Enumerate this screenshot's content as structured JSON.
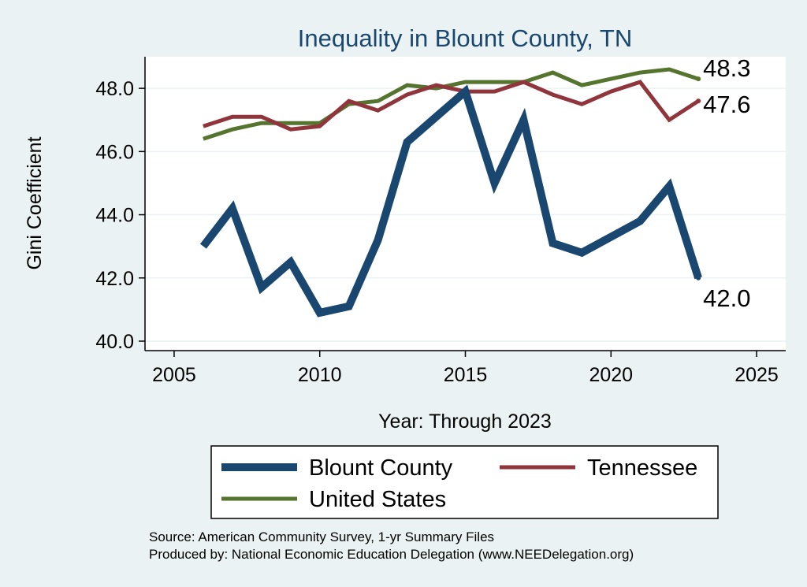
{
  "chart_data": {
    "type": "line",
    "title": "Inequality in Blount County, TN",
    "xlabel": "Year: Through 2023",
    "ylabel": "Gini Coefficient",
    "xlim": [
      2004,
      2026
    ],
    "ylim": [
      39.7,
      49.0
    ],
    "xticks": [
      2005,
      2010,
      2015,
      2020,
      2025
    ],
    "xtick_labels": [
      "2005",
      "2010",
      "2015",
      "2020",
      "2025"
    ],
    "yticks": [
      40,
      42,
      44,
      46,
      48
    ],
    "ytick_labels": [
      "40.0",
      "42.0",
      "44.0",
      "46.0",
      "48.0"
    ],
    "grid": true,
    "legend_position": "bottom",
    "series": [
      {
        "name": "Blount County",
        "color": "#1a476f",
        "x": [
          2006,
          2007,
          2008,
          2009,
          2010,
          2011,
          2012,
          2013,
          2014,
          2015,
          2016,
          2017,
          2018,
          2019,
          2020,
          2021,
          2022,
          2023
        ],
        "values": [
          43.0,
          44.2,
          41.7,
          42.5,
          40.9,
          41.1,
          43.2,
          46.3,
          47.1,
          47.9,
          45.0,
          47.0,
          43.1,
          42.8,
          43.3,
          43.8,
          44.9,
          42.0
        ],
        "end_label": "42.0"
      },
      {
        "name": "Tennessee",
        "color": "#90353b",
        "x": [
          2006,
          2007,
          2008,
          2009,
          2010,
          2011,
          2012,
          2013,
          2014,
          2015,
          2016,
          2017,
          2018,
          2019,
          2020,
          2021,
          2022,
          2023
        ],
        "values": [
          46.8,
          47.1,
          47.1,
          46.7,
          46.8,
          47.6,
          47.3,
          47.8,
          48.1,
          47.9,
          47.9,
          48.2,
          47.8,
          47.5,
          47.9,
          48.2,
          47.0,
          47.6
        ],
        "end_label": "47.6"
      },
      {
        "name": "United States",
        "color": "#55752f",
        "x": [
          2006,
          2007,
          2008,
          2009,
          2010,
          2011,
          2012,
          2013,
          2014,
          2015,
          2016,
          2017,
          2018,
          2019,
          2020,
          2021,
          2022,
          2023
        ],
        "values": [
          46.4,
          46.7,
          46.9,
          46.9,
          46.9,
          47.5,
          47.6,
          48.1,
          48.0,
          48.2,
          48.2,
          48.2,
          48.5,
          48.1,
          48.3,
          48.5,
          48.6,
          48.3
        ],
        "end_label": "48.3"
      }
    ]
  },
  "source_line": "Source: American Community Survey, 1-yr Summary Files",
  "produced_line": "Produced by: National Economic Education Delegation (www.NEEDelegation.org)"
}
